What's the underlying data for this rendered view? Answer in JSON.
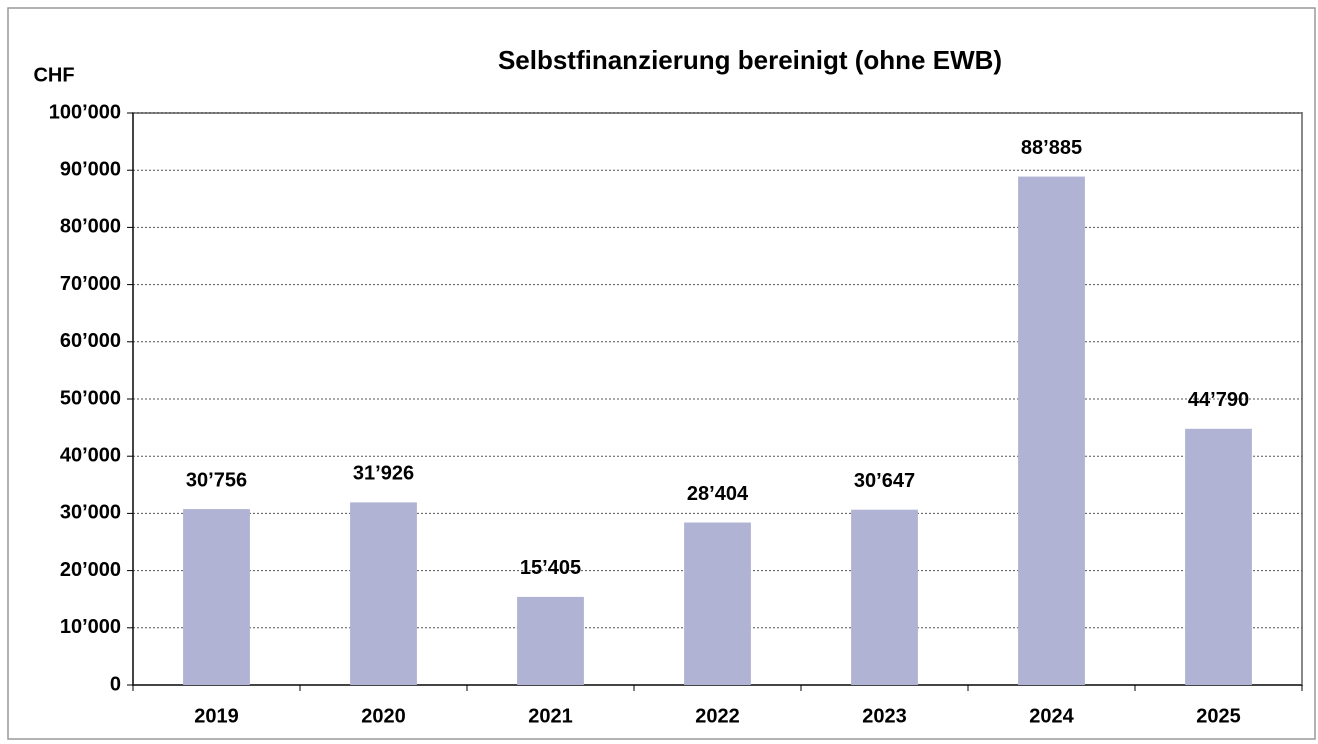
{
  "chart_data": {
    "type": "bar",
    "title": "Selbstfinanzierung bereinigt (ohne EWB)",
    "y_label": "CHF",
    "categories": [
      "2019",
      "2020",
      "2021",
      "2022",
      "2023",
      "2024",
      "2025"
    ],
    "values": [
      30756,
      31926,
      15405,
      28404,
      30647,
      88885,
      44790
    ],
    "value_labels": [
      "30’756",
      "31’926",
      "15’405",
      "28’404",
      "30’647",
      "88’885",
      "44’790"
    ],
    "color": "#b0b3d3",
    "ylim": [
      0,
      100000
    ],
    "yticks": [
      0,
      {
        "value": 10000,
        "label": "10’000"
      },
      {
        "value": 20000,
        "label": "20’000"
      },
      {
        "value": 30000,
        "label": "30’000"
      },
      {
        "value": 40000,
        "label": "40’000"
      },
      {
        "value": 50000,
        "label": "50’000"
      },
      {
        "value": 60000,
        "label": "60’000"
      },
      {
        "value": 70000,
        "label": "70’000"
      },
      {
        "value": 80000,
        "label": "80’000"
      },
      {
        "value": 90000,
        "label": "90’000"
      },
      {
        "value": 100000,
        "label": "100’000"
      }
    ],
    "grid": true
  }
}
